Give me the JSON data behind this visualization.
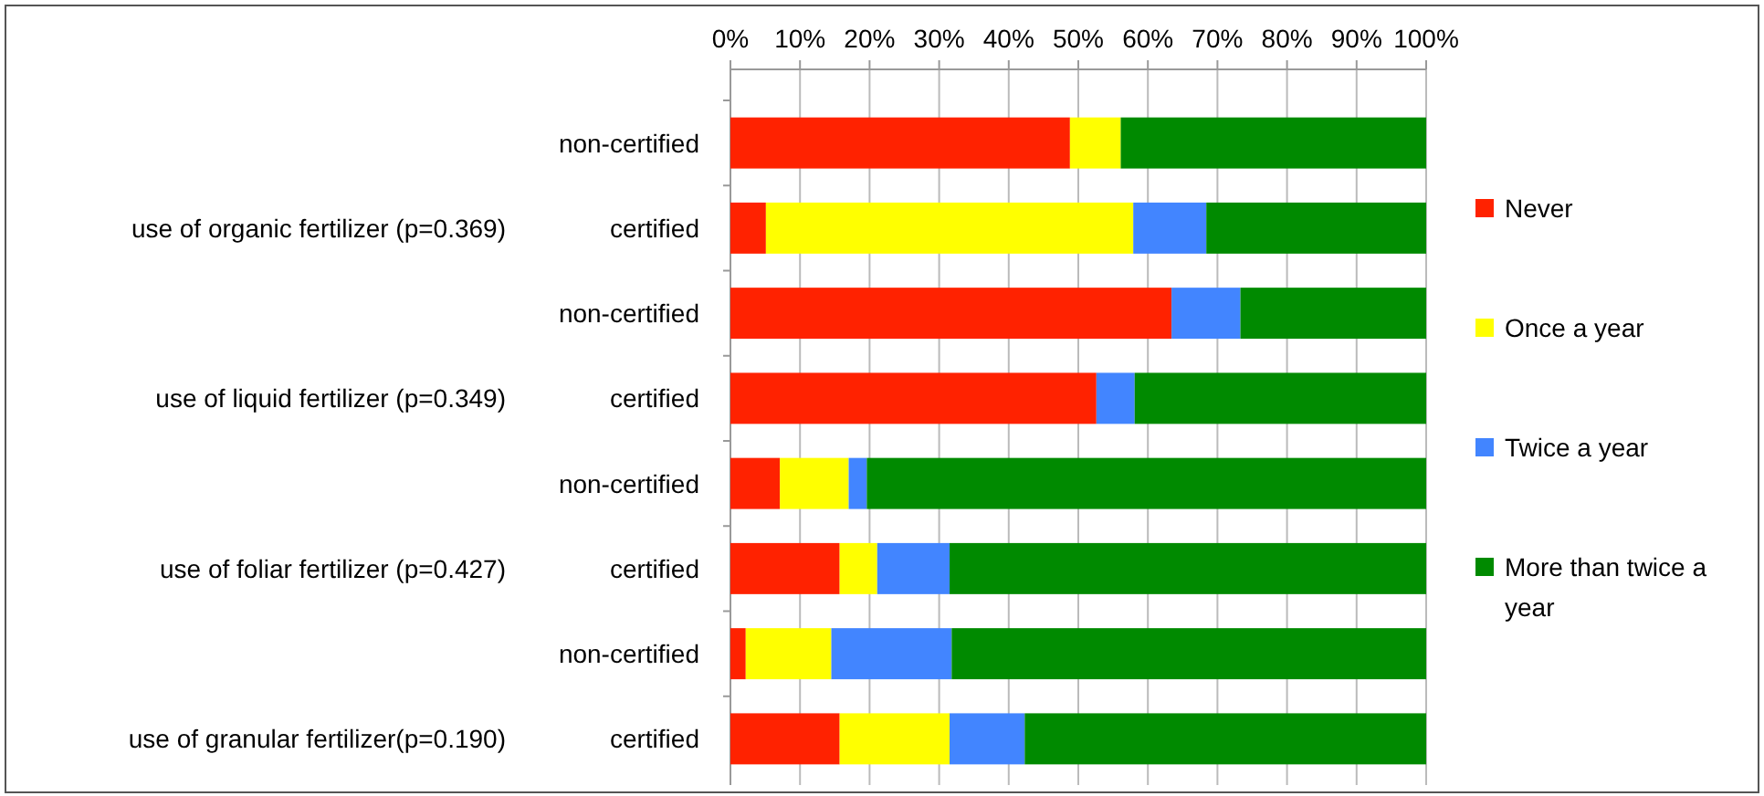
{
  "chart_data": {
    "type": "bar",
    "orientation": "horizontal",
    "stacked": true,
    "categories": [
      "non-certified",
      "certified",
      "non-certified",
      "certified",
      "non-certified",
      "certified",
      "non-certified",
      "certified"
    ],
    "annotations": [
      "use of organic fertilizer (p=0.369)",
      "use of liquid fertilizer (p=0.349)",
      "use of foliar fertilizer (p=0.427)",
      "use of granular fertilizer(p=0.190)"
    ],
    "series": [
      {
        "name": "Never",
        "color": "#ff2200",
        "values": [
          48.8,
          5.1,
          63.4,
          52.6,
          7.1,
          15.7,
          2.2,
          15.7
        ]
      },
      {
        "name": "Once a year",
        "color": "#ffff00",
        "values": [
          7.3,
          52.8,
          0,
          0,
          9.9,
          5.4,
          12.3,
          15.8
        ]
      },
      {
        "name": "Twice a year",
        "color": "#4285ff",
        "values": [
          0,
          10.5,
          9.9,
          5.5,
          2.6,
          10.4,
          17.3,
          10.8
        ]
      },
      {
        "name": "More than twice a year",
        "color": "#008a00",
        "values": [
          43.9,
          31.6,
          26.7,
          41.9,
          80.4,
          68.5,
          68.2,
          57.7
        ]
      }
    ],
    "xlim": [
      0,
      100
    ],
    "xticks": [
      {
        "value": 0,
        "label": "0%"
      },
      {
        "value": 10,
        "label": "10%"
      },
      {
        "value": 20,
        "label": "20%"
      },
      {
        "value": 30,
        "label": "30%"
      },
      {
        "value": 40,
        "label": "40%"
      },
      {
        "value": 50,
        "label": "50%"
      },
      {
        "value": 60,
        "label": "60%"
      },
      {
        "value": 70,
        "label": "70%"
      },
      {
        "value": 80,
        "label": "80%"
      },
      {
        "value": 90,
        "label": "90%"
      },
      {
        "value": 100,
        "label": "100%"
      }
    ],
    "grid": "x",
    "legend": "right"
  }
}
